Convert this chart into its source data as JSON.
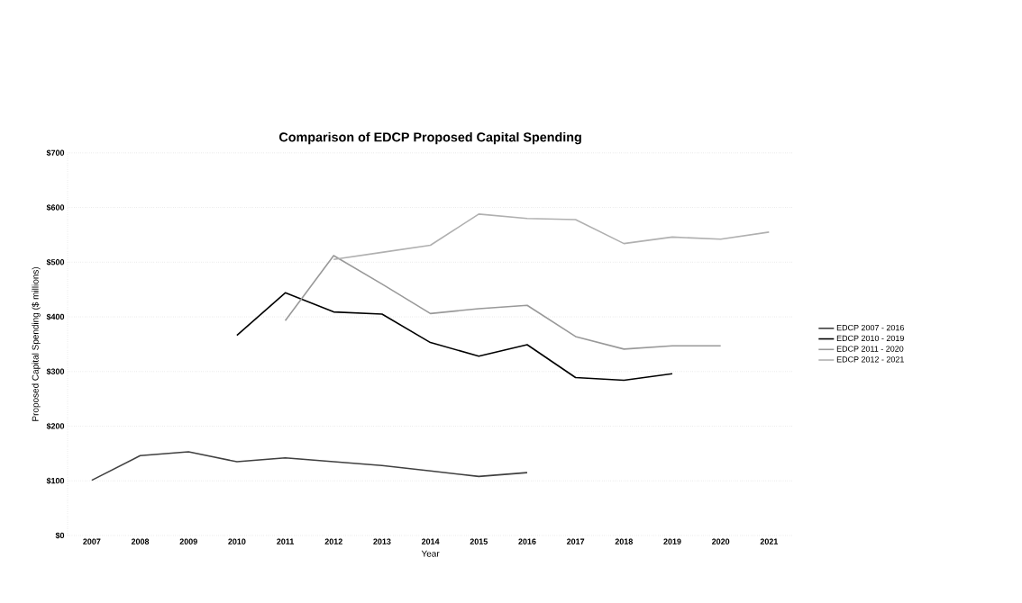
{
  "chart_data": {
    "type": "line",
    "title": "Comparison of EDCP Proposed Capital Spending",
    "xlabel": "Year",
    "ylabel": "Proposed Capital Spending ($ millions)",
    "series": [
      {
        "name": "EDCP 2007 - 2016",
        "color": "#404040",
        "x": [
          2007,
          2008,
          2009,
          2010,
          2011,
          2012,
          2013,
          2014,
          2015,
          2016
        ],
        "values": [
          101,
          146,
          153,
          135,
          142,
          135,
          128,
          118,
          108,
          115
        ]
      },
      {
        "name": "EDCP 2010 - 2019",
        "color": "#000000",
        "x": [
          2010,
          2011,
          2012,
          2013,
          2014,
          2015,
          2016,
          2017,
          2018,
          2019
        ],
        "values": [
          366,
          444,
          409,
          405,
          353,
          328,
          349,
          289,
          284,
          296
        ]
      },
      {
        "name": "EDCP 2011 - 2020",
        "color": "#999999",
        "x": [
          2011,
          2012,
          2013,
          2014,
          2015,
          2016,
          2017,
          2018,
          2019,
          2020
        ],
        "values": [
          393,
          512,
          460,
          406,
          415,
          421,
          364,
          341,
          347,
          347
        ]
      },
      {
        "name": "EDCP 2012 - 2021",
        "color": "#b0b0b0",
        "x": [
          2012,
          2013,
          2014,
          2015,
          2016,
          2017,
          2018,
          2019,
          2020,
          2021
        ],
        "values": [
          505,
          518,
          531,
          588,
          580,
          578,
          534,
          546,
          542,
          555
        ]
      }
    ],
    "xlim": [
      2006.5,
      2021.5
    ],
    "xticks": [
      2007,
      2008,
      2009,
      2010,
      2011,
      2012,
      2013,
      2014,
      2015,
      2016,
      2017,
      2018,
      2019,
      2020,
      2021
    ],
    "ylim": [
      0,
      700
    ],
    "yticks": [
      {
        "value": 0,
        "label": "$0"
      },
      {
        "value": 100,
        "label": "$100"
      },
      {
        "value": 200,
        "label": "$200"
      },
      {
        "value": 300,
        "label": "$300"
      },
      {
        "value": 400,
        "label": "$400"
      },
      {
        "value": 500,
        "label": "$500"
      },
      {
        "value": 600,
        "label": "$600"
      },
      {
        "value": 700,
        "label": "$700"
      }
    ],
    "grid": "y",
    "legend": "right",
    "marker": "none",
    "line_style": "solid"
  }
}
